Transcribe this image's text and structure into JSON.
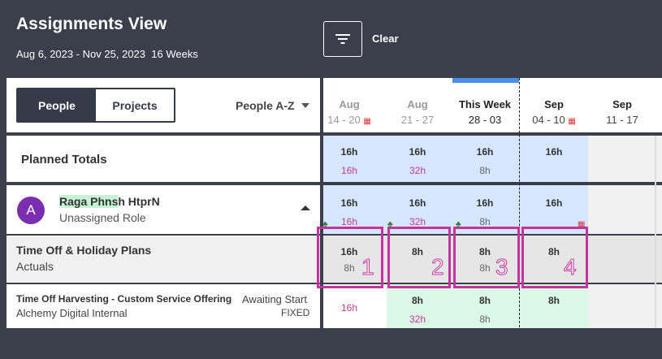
{
  "header": {
    "title": "Assignments View",
    "date_range": "Aug 6, 2023 - Nov 25, 2023",
    "weeks": "16 Weeks",
    "clear_label": "Clear"
  },
  "toggle": {
    "people": "People",
    "projects": "Projects"
  },
  "sort": {
    "label": "People A-Z"
  },
  "columns": [
    {
      "month": "Aug",
      "range": "14 - 20",
      "holiday": true
    },
    {
      "month": "Aug",
      "range": "21 - 27",
      "holiday": false
    },
    {
      "month": "This Week",
      "range": "28 - 03",
      "holiday": false
    },
    {
      "month": "Sep",
      "range": "04 - 10",
      "holiday": true
    },
    {
      "month": "Sep",
      "range": "11 - 17",
      "holiday": false
    }
  ],
  "planned_totals": {
    "label": "Planned Totals",
    "cells": [
      {
        "top": "16h",
        "bottom": "16h"
      },
      {
        "top": "16h",
        "bottom": "32h"
      },
      {
        "top": "16h",
        "bottom": "8h"
      },
      {
        "top": "16h",
        "bottom": ""
      }
    ]
  },
  "person": {
    "initial": "A",
    "name_highlight": "Raga Phns",
    "name_rest": "h HtprN",
    "role": "Unassigned Role",
    "cells": [
      {
        "top": "16h",
        "bottom": "16h"
      },
      {
        "top": "16h",
        "bottom": "32h"
      },
      {
        "top": "16h",
        "bottom": "8h"
      },
      {
        "top": "16h",
        "bottom": ""
      }
    ]
  },
  "time_off": {
    "title": "Time Off & Holiday Plans",
    "subtitle": "Actuals",
    "cells": [
      {
        "top": "16h",
        "bottom": "8h",
        "marker": "1"
      },
      {
        "top": "8h",
        "bottom": "",
        "marker": "2"
      },
      {
        "top": "8h",
        "bottom": "8h",
        "marker": "3"
      },
      {
        "top": "8h",
        "bottom": "",
        "marker": "4"
      }
    ]
  },
  "project": {
    "title": "Time Off Harvesting - Custom Service Offering",
    "client": "Alchemy Digital Internal",
    "status": "Awaiting Start",
    "type": "FIXED",
    "cells": [
      {
        "top": "",
        "bottom": "16h"
      },
      {
        "top": "8h",
        "bottom": "32h"
      },
      {
        "top": "8h",
        "bottom": "8h"
      },
      {
        "top": "8h",
        "bottom": ""
      }
    ]
  },
  "colors": {
    "header_bg": "#3a3f4b",
    "planned_blue": "#d6e6ff",
    "project_green": "#dcf8e6",
    "marker_pink": "#c4349e",
    "accent_blue": "#4c8fe8",
    "avatar_purple": "#7a2eb0"
  }
}
